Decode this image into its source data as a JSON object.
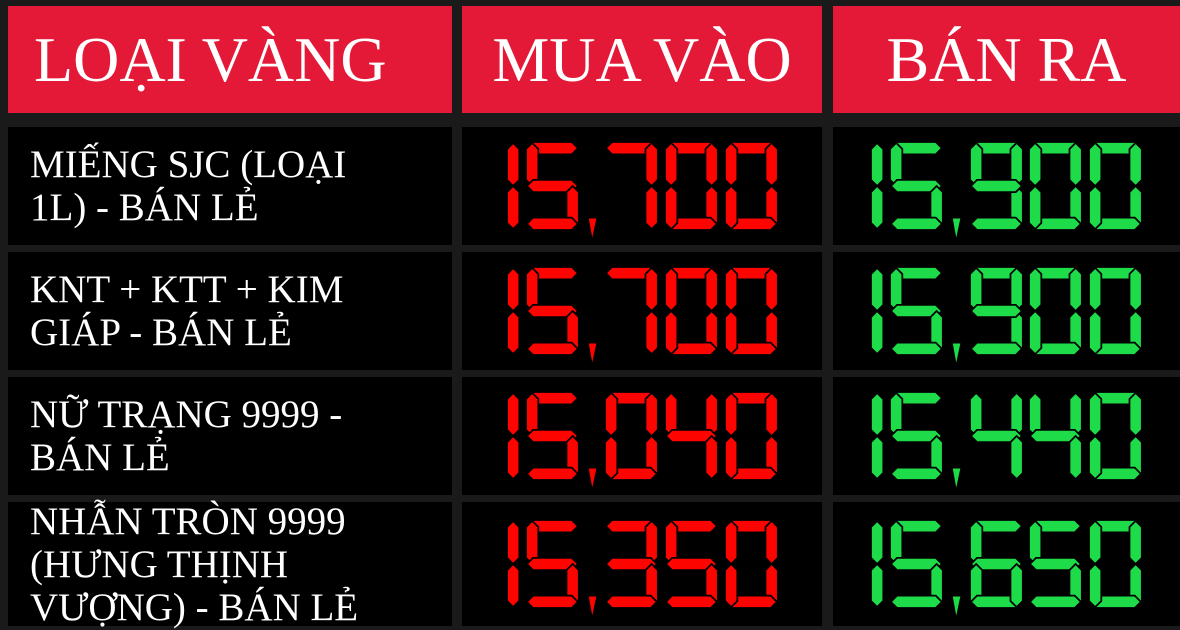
{
  "board": {
    "columns": [
      {
        "key": "label",
        "title": "LOẠI VÀNG"
      },
      {
        "key": "buy",
        "title": "MUA VÀO"
      },
      {
        "key": "sell",
        "title": "BÁN RA"
      }
    ],
    "rows": [
      {
        "label": "MIẾNG SJC (LOẠI\n1L) - BÁN LẺ",
        "buy": "15,700",
        "sell": "15,900"
      },
      {
        "label": "KNT + KTT + KIM\nGIÁP - BÁN LẺ",
        "buy": "15,700",
        "sell": "15,900"
      },
      {
        "label": "NỮ TRẠNG 9999 -\nBÁN LẺ",
        "buy": "15,040",
        "sell": "15,440"
      },
      {
        "label": "NHẪN TRÒN 9999\n(HƯNG THỊNH\nVƯỢNG) - BÁN LẺ",
        "buy": "15,350",
        "sell": "15,650"
      }
    ],
    "colors": {
      "page_bg": "#1a1a1a",
      "row_bg": "#000000",
      "header_bg": "#e41937",
      "header_text": "#ffffff",
      "label_text": "#ffffff",
      "buy_value": "#fe0400",
      "sell_value": "#1edc49"
    }
  }
}
